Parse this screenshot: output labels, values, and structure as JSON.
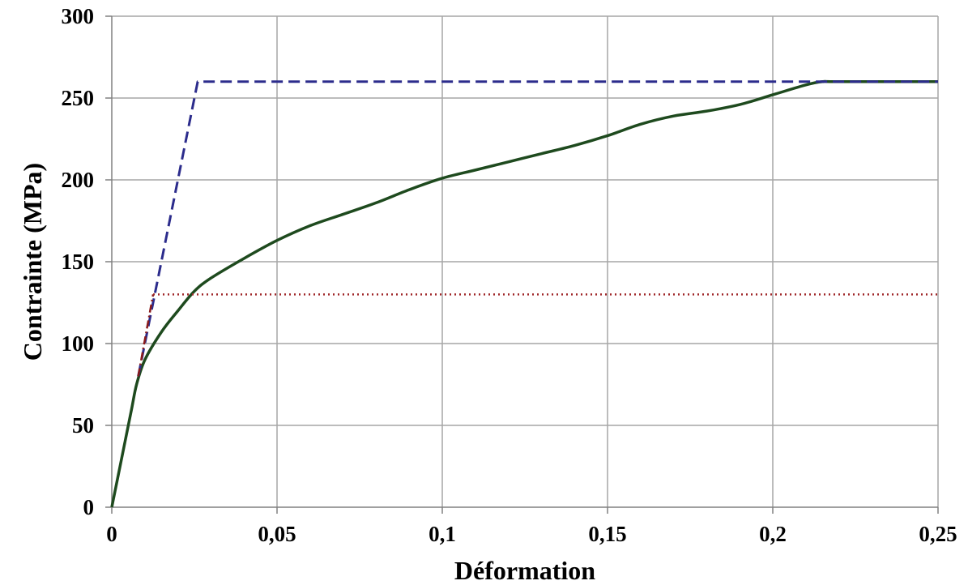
{
  "chart_data": {
    "type": "line",
    "title": "",
    "xlabel": "Déformation",
    "ylabel": "Contrainte (MPa)",
    "xlim": [
      0,
      0.25
    ],
    "ylim": [
      0,
      300
    ],
    "grid": true,
    "x_ticks": [
      0,
      0.05,
      0.1,
      0.15,
      0.2,
      0.25
    ],
    "x_tick_labels": [
      "0",
      "0,05",
      "0,1",
      "0,15",
      "0,2",
      "0,25"
    ],
    "y_ticks": [
      0,
      50,
      100,
      150,
      200,
      250,
      300
    ],
    "y_tick_labels": [
      "0",
      "50",
      "100",
      "150",
      "200",
      "250",
      "300"
    ],
    "series": [
      {
        "style": "solid",
        "color": "#1e4a1e",
        "points": [
          [
            0,
            0
          ],
          [
            0.002,
            20
          ],
          [
            0.004,
            40
          ],
          [
            0.006,
            60
          ],
          [
            0.0075,
            75
          ],
          [
            0.01,
            90
          ],
          [
            0.015,
            107
          ],
          [
            0.02,
            120
          ],
          [
            0.025,
            132
          ],
          [
            0.03,
            140
          ],
          [
            0.04,
            152
          ],
          [
            0.05,
            163
          ],
          [
            0.06,
            172
          ],
          [
            0.07,
            179
          ],
          [
            0.08,
            186
          ],
          [
            0.09,
            194
          ],
          [
            0.1,
            201
          ],
          [
            0.11,
            206
          ],
          [
            0.12,
            211
          ],
          [
            0.13,
            216
          ],
          [
            0.14,
            221
          ],
          [
            0.15,
            227
          ],
          [
            0.16,
            234
          ],
          [
            0.17,
            239
          ],
          [
            0.18,
            242
          ],
          [
            0.19,
            246
          ],
          [
            0.2,
            252
          ],
          [
            0.21,
            258
          ],
          [
            0.215,
            260
          ],
          [
            0.22,
            260
          ],
          [
            0.25,
            260
          ]
        ]
      },
      {
        "style": "dashed",
        "color": "#2c2c8c",
        "points": [
          [
            0.008,
            80
          ],
          [
            0.026,
            260
          ],
          [
            0.25,
            260
          ]
        ]
      },
      {
        "style": "dash-dot",
        "color": "#8b1a1a",
        "points": [
          [
            0.008,
            80
          ],
          [
            0.0125,
            130
          ]
        ]
      },
      {
        "style": "dotted",
        "color": "#a0282a",
        "points": [
          [
            0.0125,
            130
          ],
          [
            0.25,
            130
          ]
        ]
      }
    ]
  }
}
